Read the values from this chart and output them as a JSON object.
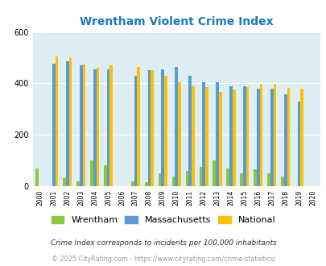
{
  "title": "Wrentham Violent Crime Index",
  "title_color": "#1a7abf",
  "years": [
    2000,
    2001,
    2002,
    2003,
    2004,
    2005,
    2006,
    2007,
    2008,
    2009,
    2010,
    2011,
    2012,
    2013,
    2014,
    2015,
    2016,
    2017,
    2018,
    2019,
    2020
  ],
  "wrentham": [
    70,
    0,
    30,
    20,
    100,
    80,
    0,
    20,
    15,
    50,
    38,
    60,
    75,
    100,
    70,
    50,
    65,
    50,
    38,
    0,
    0
  ],
  "massachusetts": [
    0,
    475,
    485,
    470,
    455,
    455,
    0,
    430,
    450,
    455,
    465,
    428,
    403,
    405,
    390,
    390,
    378,
    380,
    358,
    330,
    0
  ],
  "national": [
    0,
    506,
    497,
    473,
    460,
    469,
    0,
    463,
    452,
    430,
    403,
    388,
    387,
    367,
    375,
    385,
    397,
    397,
    383,
    379,
    0
  ],
  "bar_color_wrentham": "#8dc63f",
  "bar_color_massachusetts": "#5b9bd5",
  "bar_color_national": "#ffc000",
  "plot_bg": "#ddeef4",
  "ylim": [
    0,
    600
  ],
  "yticks": [
    0,
    200,
    400,
    600
  ],
  "legend_labels": [
    "Wrentham",
    "Massachusetts",
    "National"
  ],
  "footnote1": "Crime Index corresponds to incidents per 100,000 inhabitants",
  "footnote2": "© 2025 CityRating.com - https://www.cityrating.com/crime-statistics/",
  "footnote1_color": "#333333",
  "footnote2_color": "#999999",
  "grid_color": "#ffffff"
}
